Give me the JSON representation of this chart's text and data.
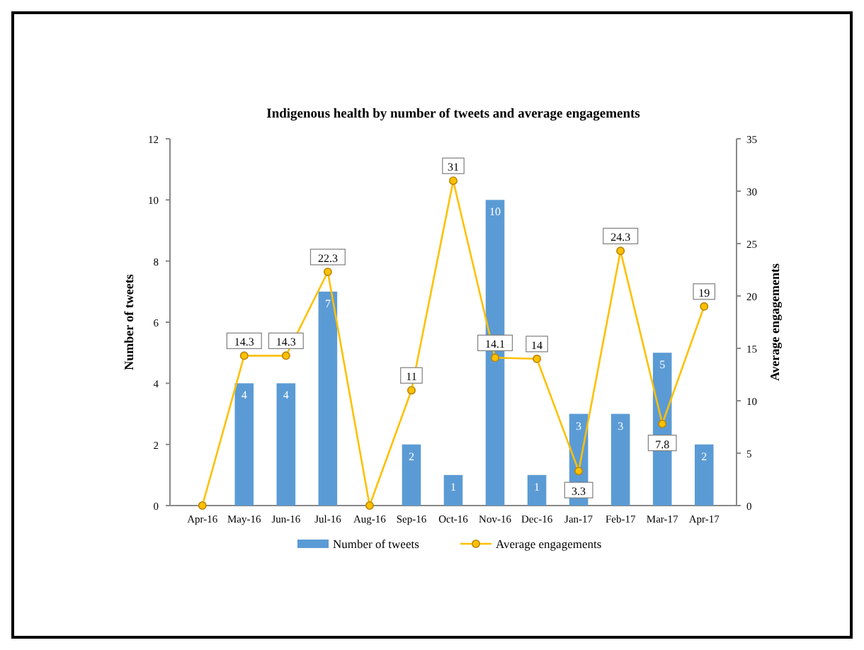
{
  "chart_data": {
    "type": "bar",
    "title": "Indigenous health by number of tweets and average engagements",
    "ylabel": "Number of tweets",
    "y2label": "Average engagements",
    "categories": [
      "Apr-16",
      "May-16",
      "Jun-16",
      "Jul-16",
      "Aug-16",
      "Sep-16",
      "Oct-16",
      "Nov-16",
      "Dec-16",
      "Jan-17",
      "Feb-17",
      "Mar-17",
      "Apr-17"
    ],
    "series": [
      {
        "name": "Number of tweets",
        "color": "#5b9bd5",
        "values": [
          0,
          4,
          4,
          7,
          0,
          2,
          1,
          10,
          1,
          3,
          3,
          5,
          2
        ],
        "value_labels": [
          null,
          "4",
          "4",
          "7",
          null,
          "2",
          "1",
          "10",
          "1",
          "3",
          "3",
          "5",
          "2"
        ]
      },
      {
        "name": "Average engagements",
        "type": "line",
        "axis": "y2",
        "color": "#ffc000",
        "values": [
          0,
          14.3,
          14.3,
          22.3,
          0,
          11,
          31,
          14.1,
          14,
          3.3,
          24.3,
          7.8,
          19
        ],
        "value_labels": [
          null,
          "14.3",
          "14.3",
          "22.3",
          null,
          "11",
          "31",
          "14.1",
          "14",
          "3.3",
          "24.3",
          "7.8",
          "19"
        ]
      }
    ],
    "ylim": [
      0,
      12
    ],
    "yticks": [
      0,
      2,
      4,
      6,
      8,
      10,
      12
    ],
    "y2lim": [
      0,
      35
    ],
    "y2ticks": [
      0,
      5,
      10,
      15,
      20,
      25,
      30,
      35
    ],
    "grid": false,
    "legend": "bottom",
    "marker": "circle",
    "line_style": "solid"
  }
}
